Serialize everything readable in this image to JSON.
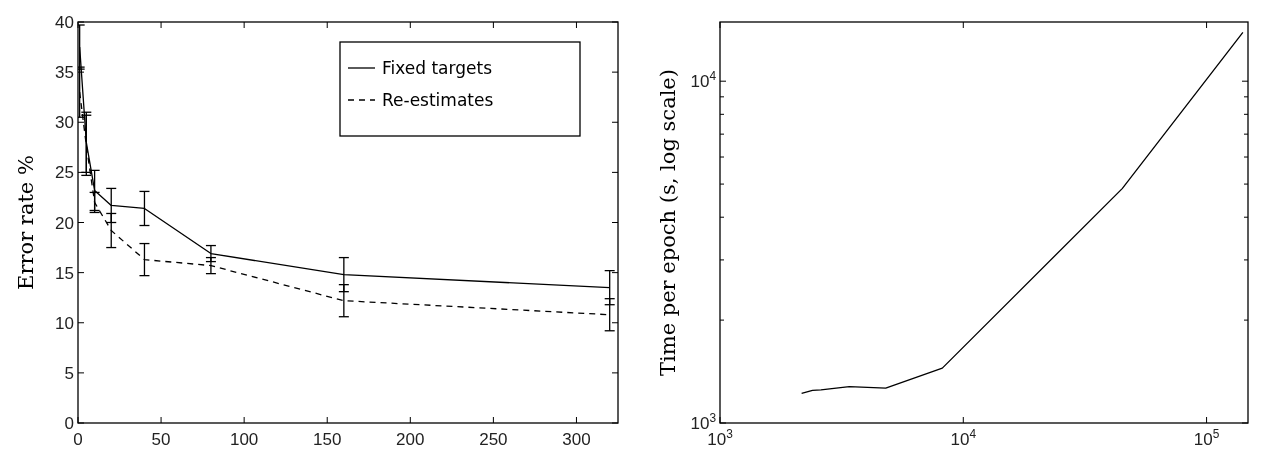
{
  "chart_data": [
    {
      "type": "line",
      "ylabel": "Error rate %",
      "xlim": [
        0,
        325
      ],
      "ylim": [
        0,
        40
      ],
      "xticks": [
        0,
        50,
        100,
        150,
        200,
        250,
        300
      ],
      "yticks": [
        0,
        5,
        10,
        15,
        20,
        25,
        30,
        35,
        40
      ],
      "legend": "top right",
      "grid": false,
      "series": [
        {
          "name": "Fixed targets",
          "color": "#000000",
          "line_style": "solid",
          "x": [
            1,
            5,
            10,
            20,
            40,
            80,
            160,
            320
          ],
          "values": [
            37.5,
            28,
            23.2,
            21.7,
            21.4,
            16.9,
            14.8,
            13.5
          ],
          "errors": [
            2.2,
            3,
            2,
            1.7,
            1.7,
            0.8,
            1.7,
            1.7
          ]
        },
        {
          "name": "Re-estimates",
          "color": "#000000",
          "line_style": "dashed",
          "x": [
            1,
            5,
            10,
            20,
            40,
            80,
            160,
            320
          ],
          "values": [
            33,
            27.7,
            22,
            19.2,
            16.3,
            15.7,
            12.2,
            10.8
          ],
          "errors": [
            2.5,
            3,
            1,
            1.7,
            1.6,
            0.8,
            1.6,
            1.6
          ]
        }
      ]
    },
    {
      "type": "line",
      "ylabel": "Time per epoch (s, log scale)",
      "log": "xy",
      "xlim": [
        1000,
        148000
      ],
      "ylim": [
        1000,
        14900
      ],
      "xticks": [
        {
          "value": 1000,
          "label": "10$^{3}$"
        },
        {
          "value": 10000,
          "label": "10$^{4}$"
        },
        {
          "value": 100000,
          "label": "10$^{5}$"
        }
      ],
      "yticks": [
        {
          "value": 1000,
          "label": "10$^{3}$"
        },
        {
          "value": 2000,
          "label": null
        },
        {
          "value": 3000,
          "label": null
        },
        {
          "value": 4000,
          "label": null
        },
        {
          "value": 5000,
          "label": null
        },
        {
          "value": 6000,
          "label": null
        },
        {
          "value": 7000,
          "label": null
        },
        {
          "value": 8000,
          "label": null
        },
        {
          "value": 9000,
          "label": null
        },
        {
          "value": 10000,
          "label": "10$^{4}$"
        }
      ],
      "series": [
        {
          "color": "#000000",
          "x": [
            2165,
            2400,
            2600,
            3400,
            4800,
            8200,
            45000,
            141000
          ],
          "values": [
            1220,
            1245,
            1250,
            1277,
            1264,
            1447,
            4850,
            13900
          ]
        }
      ]
    }
  ]
}
